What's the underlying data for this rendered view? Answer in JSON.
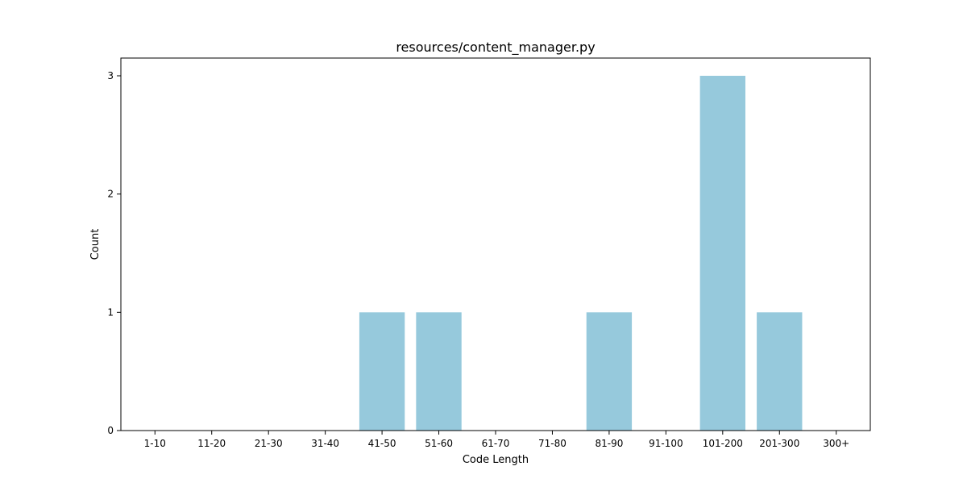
{
  "chart_data": {
    "type": "bar",
    "title": "resources/content_manager.py",
    "xlabel": "Code Length",
    "ylabel": "Count",
    "categories": [
      "1-10",
      "11-20",
      "21-30",
      "31-40",
      "41-50",
      "51-60",
      "61-70",
      "71-80",
      "81-90",
      "91-100",
      "101-200",
      "201-300",
      "300+"
    ],
    "values": [
      0,
      0,
      0,
      0,
      1,
      1,
      0,
      0,
      1,
      0,
      3,
      1,
      0
    ],
    "ylim": [
      0,
      3.15
    ],
    "yticks": [
      0,
      1,
      2,
      3
    ],
    "grid": false,
    "legend": "none",
    "bar_color": "#96c9dc"
  }
}
